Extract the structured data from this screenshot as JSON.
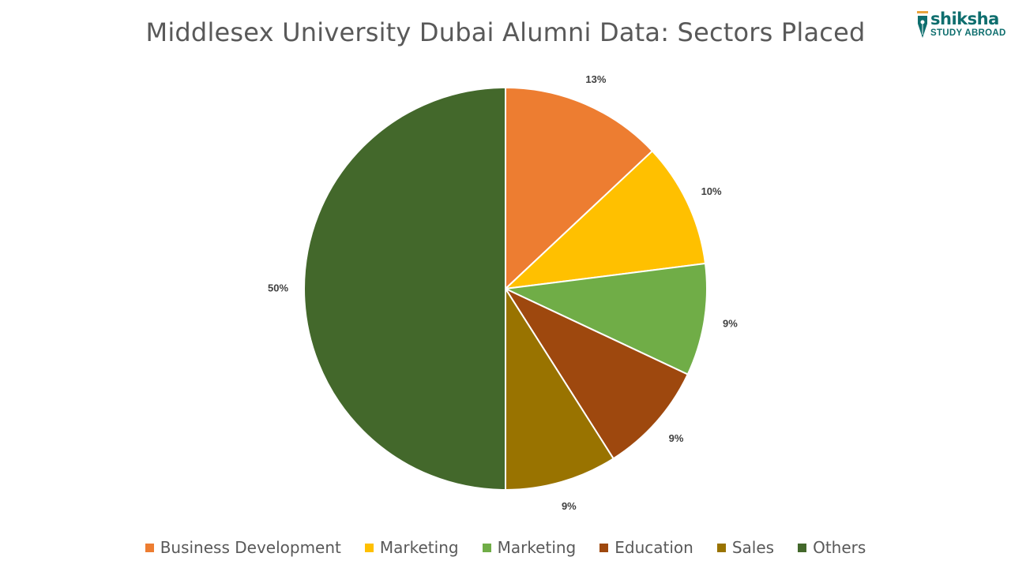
{
  "chart_data": {
    "type": "pie",
    "title": "Middlesex University Dubai Alumni Data: Sectors Placed",
    "categories": [
      "Business Development",
      "Marketing",
      "Marketing",
      "Education",
      "Sales",
      "Others"
    ],
    "values": [
      13,
      10,
      9,
      9,
      9,
      50
    ],
    "labels": [
      "13%",
      "10%",
      "9%",
      "9%",
      "9%",
      "50%"
    ],
    "colors": [
      "#ED7D31",
      "#FFC000",
      "#70AD47",
      "#9E480E",
      "#997300",
      "#43682B"
    ],
    "legend_position": "bottom"
  },
  "logo": {
    "brand": "shiksha",
    "subtitle": "STUDY ABROAD",
    "color": "#0e6e6e",
    "icon": "pen-nib-icon"
  }
}
